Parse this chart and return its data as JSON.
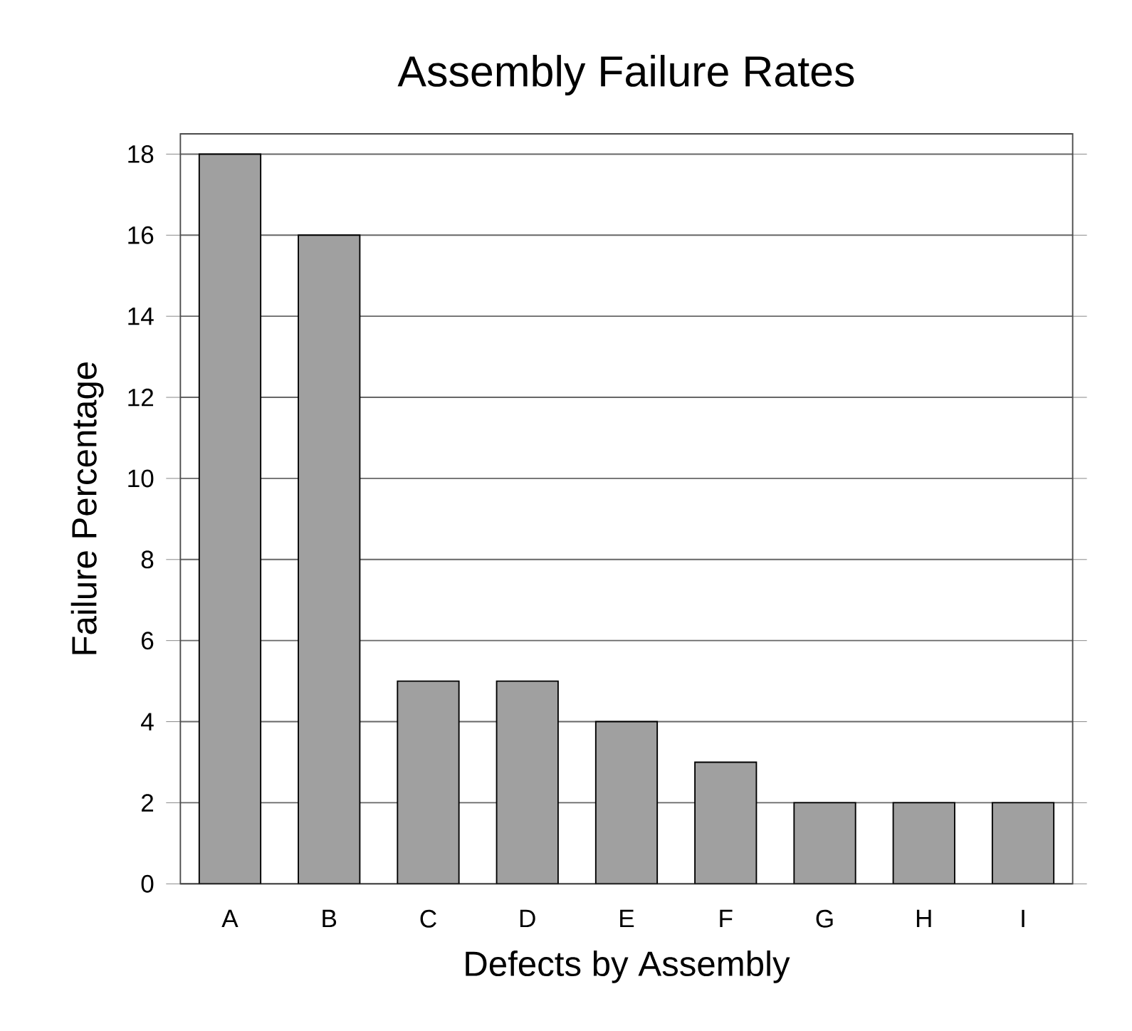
{
  "chart_data": {
    "type": "bar",
    "title": "Assembly Failure Rates",
    "xlabel": "Defects by Assembly",
    "ylabel": "Failure Percentage",
    "categories": [
      "A",
      "B",
      "C",
      "D",
      "E",
      "F",
      "G",
      "H",
      "I"
    ],
    "values": [
      18,
      16,
      5,
      5,
      4,
      3,
      2,
      2,
      2
    ],
    "color": "#a0a0a0",
    "ylim": [
      0,
      18.5
    ],
    "yticks": [
      0,
      2,
      4,
      6,
      8,
      10,
      12,
      14,
      16,
      18
    ],
    "grid": "y"
  }
}
